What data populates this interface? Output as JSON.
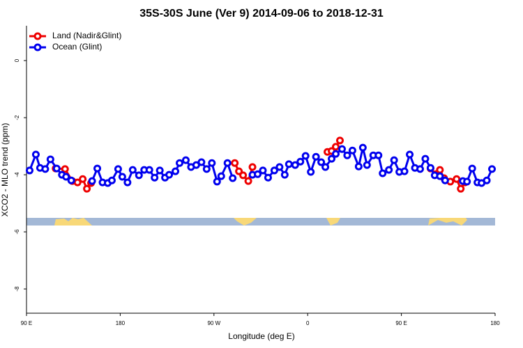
{
  "chart_data": {
    "type": "line",
    "title": "35S-30S June (Ver 9)   2014-09-06 to 2018-12-31",
    "xlabel": "Longitude (deg E)",
    "ylabel": "XCO2 - MLO trend (ppm)",
    "xlim": [
      90,
      540
    ],
    "xticks": [
      {
        "value": 90,
        "label": "90 E"
      },
      180,
      {
        "value": 270,
        "label": "90 W"
      },
      {
        "value": 360,
        "label": "0"
      },
      {
        "value": 450,
        "label": "90 E"
      },
      {
        "value": 540,
        "label": "180"
      }
    ],
    "ylim": [
      -8.85,
      1.22
    ],
    "yticks": [
      0,
      -2,
      -4,
      -6,
      -8
    ],
    "legend": "top-left",
    "series": [
      {
        "name": "Land (Nadir&Glint)",
        "color": "#ee0000",
        "x": [
          118,
          127,
          134,
          139,
          144,
          148,
          152,
          230,
          290,
          294,
          298,
          303,
          307,
          340,
          379,
          383,
          387,
          391,
          440,
          478,
          483,
          487,
          491,
          497,
          503,
          507,
          511
        ],
        "values": [
          -3.78,
          -3.8,
          -4.22,
          -4.27,
          -4.15,
          -4.49,
          -4.29,
          null,
          -3.59,
          -3.88,
          -4.02,
          -4.22,
          -3.73,
          null,
          -3.2,
          -3.17,
          -3.02,
          -2.8,
          null,
          -3.78,
          -3.98,
          -3.83,
          -4.12,
          -4.24,
          -4.15,
          -4.49,
          -4.27
        ]
      },
      {
        "name": "Ocean (Glint)",
        "color": "#0000ee",
        "x": [
          93,
          99,
          103,
          108,
          113,
          119,
          124,
          128,
          133,
          140,
          153,
          158,
          163,
          168,
          172,
          178,
          182,
          187,
          192,
          198,
          203,
          208,
          213,
          218,
          223,
          227,
          233,
          237,
          243,
          248,
          253,
          258,
          263,
          268,
          273,
          277,
          283,
          288,
          297,
          307,
          312,
          317,
          322,
          328,
          333,
          338,
          342,
          348,
          353,
          358,
          363,
          368,
          373,
          377,
          383,
          387,
          393,
          398,
          403,
          409,
          413,
          417,
          423,
          428,
          432,
          438,
          443,
          448,
          453,
          458,
          463,
          468,
          473,
          478,
          482,
          487,
          492,
          503,
          509,
          513,
          518,
          523,
          527,
          532,
          537
        ],
        "values": [
          -3.85,
          -3.29,
          -3.76,
          -3.8,
          -3.46,
          -3.78,
          -4.0,
          -4.07,
          -4.2,
          null,
          -4.22,
          -3.78,
          -4.27,
          -4.29,
          -4.2,
          -3.8,
          -4.07,
          -4.27,
          -3.83,
          -4.02,
          -3.83,
          -3.83,
          -4.1,
          -3.85,
          -4.1,
          -4.0,
          -3.88,
          -3.59,
          -3.49,
          -3.73,
          -3.66,
          -3.56,
          -3.8,
          -3.59,
          -4.24,
          -4.05,
          -3.59,
          -4.12,
          null,
          -4.0,
          -3.98,
          -3.85,
          -4.1,
          -3.85,
          -3.73,
          -4.0,
          -3.63,
          -3.66,
          -3.54,
          -3.34,
          -3.9,
          -3.37,
          -3.56,
          -3.73,
          -3.44,
          -3.27,
          -3.1,
          -3.32,
          -3.15,
          -3.71,
          -3.05,
          -3.66,
          -3.32,
          -3.32,
          -3.95,
          -3.83,
          -3.49,
          -3.9,
          -3.88,
          -3.29,
          -3.76,
          -3.8,
          -3.44,
          -3.76,
          -4.02,
          -4.05,
          -4.2,
          null,
          -4.22,
          -4.24,
          -3.78,
          -4.27,
          -4.29,
          -4.2,
          -3.8
        ]
      }
    ]
  }
}
